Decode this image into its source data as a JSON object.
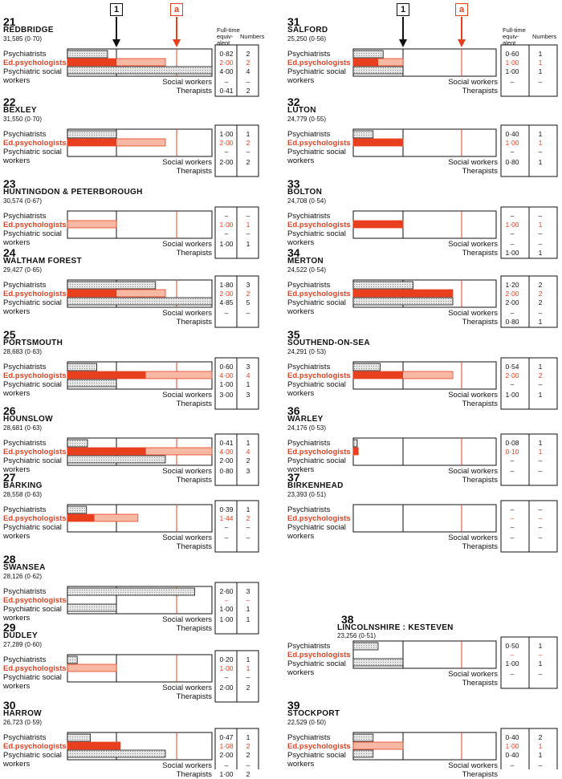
{
  "legend": {
    "marker_black": "1",
    "marker_red": "a",
    "col_header_fte": "Full-time equiv-alent",
    "col_header_fte_lines": [
      "Full-time",
      "equiv-",
      "alent"
    ],
    "col_header_num": "Numbers"
  },
  "row_labels": {
    "psychiatrists": "Psychiatrists",
    "ed_psychologists": "Ed.psychologists",
    "psychiatric_social": "Psychiatric social",
    "workers": "workers",
    "social_workers": "Social workers",
    "therapists": "Therapists"
  },
  "colors": {
    "black": "#111111",
    "red": "#e8401f",
    "red_light": "#f7b9a3",
    "hatch": "#c9c9c9"
  },
  "chart_data": {
    "type": "bar",
    "categories": [
      "Psychiatrists",
      "Ed.psychologists",
      "Psychiatric social workers",
      "Social workers",
      "Therapists"
    ],
    "markers": {
      "1": 1.0,
      "a": 2.25
    },
    "xlim": [
      0,
      5
    ],
    "areas": [
      {
        "rank": "21",
        "name": "REDBRIDGE",
        "pop": "31,585 (0·70)",
        "fte": [
          "0·82",
          "2·00",
          "4·00",
          "–",
          "0·41"
        ],
        "num": [
          "2",
          "2",
          "4",
          "–",
          "2"
        ],
        "ed_actual": 1.0
      },
      {
        "rank": "22",
        "name": "BEXLEY",
        "pop": "31,550 (0·70)",
        "fte": [
          "1·00",
          "2·00",
          "–",
          "2·00",
          ""
        ],
        "num": [
          "1",
          "2",
          "–",
          "2",
          ""
        ],
        "ed_actual": 1.0
      },
      {
        "rank": "23",
        "name": "HUNTINGDON & PETERBOROUGH",
        "pop": "30,574 (0·67)",
        "fte": [
          "–",
          "1·00",
          "–",
          "1·00",
          ""
        ],
        "num": [
          "–",
          "1",
          "–",
          "1",
          ""
        ],
        "ed_actual": 0
      },
      {
        "rank": "24",
        "name": "WALTHAM FOREST",
        "pop": "29,427 (0·65)",
        "fte": [
          "1·80",
          "2·00",
          "4·85",
          "–",
          ""
        ],
        "num": [
          "3",
          "2",
          "5",
          "–",
          ""
        ],
        "ed_actual": 1.0
      },
      {
        "rank": "25",
        "name": "PORTSMOUTH",
        "pop": "28,683 (0·63)",
        "fte": [
          "0·60",
          "4·00",
          "1·00",
          "3·00",
          ""
        ],
        "num": [
          "3",
          "4",
          "1",
          "3",
          ""
        ],
        "ed_actual": 1.6
      },
      {
        "rank": "26",
        "name": "HOUNSLOW",
        "pop": "28,681 (0·63)",
        "fte": [
          "0·41",
          "4·00",
          "2·00",
          "0·80",
          ""
        ],
        "num": [
          "1",
          "4",
          "2",
          "3",
          ""
        ],
        "ed_actual": 1.6
      },
      {
        "rank": "27",
        "name": "BARKING",
        "pop": "28,558 (0·63)",
        "fte": [
          "0·39",
          "1·44",
          "–",
          "–",
          ""
        ],
        "num": [
          "1",
          "2",
          "–",
          "–",
          ""
        ],
        "ed_actual": 0.55
      },
      {
        "rank": "28",
        "name": "SWANSEA",
        "pop": "28,126 (0·62)",
        "fte": [
          "2·60",
          "–",
          "1·00",
          "1·00",
          ""
        ],
        "num": [
          "3",
          "–",
          "1",
          "1",
          ""
        ],
        "ed_actual": 0
      },
      {
        "rank": "29",
        "name": "DUDLEY",
        "pop": "27,289 (0·60)",
        "fte": [
          "0·20",
          "1·00",
          "–",
          "2·00",
          ""
        ],
        "num": [
          "1",
          "1",
          "–",
          "2",
          ""
        ],
        "ed_actual": 0
      },
      {
        "rank": "30",
        "name": "HARROW",
        "pop": "26,723 (0·59)",
        "fte": [
          "0·47",
          "1·08",
          "2·00",
          "–",
          "1·00"
        ],
        "num": [
          "1",
          "2",
          "2",
          "–",
          "2"
        ],
        "ed_actual": 1.08
      },
      {
        "rank": "31",
        "name": "SALFORD",
        "pop": "25,250 (0·56)",
        "fte": [
          "0·60",
          "1·00",
          "1·00",
          "–",
          ""
        ],
        "num": [
          "1",
          "1",
          "1",
          "–",
          ""
        ],
        "ed_actual": 0.5
      },
      {
        "rank": "32",
        "name": "LUTON",
        "pop": "24,779 (0·55)",
        "fte": [
          "0·40",
          "1·00",
          "–",
          "0·80",
          ""
        ],
        "num": [
          "1",
          "1",
          "–",
          "1",
          ""
        ],
        "ed_actual": 1.0
      },
      {
        "rank": "33",
        "name": "BOLTON",
        "pop": "24,708 (0·54)",
        "fte": [
          "–",
          "1·00",
          "–",
          "–",
          "1·00"
        ],
        "num": [
          "–",
          "1",
          "–",
          "–",
          "1"
        ],
        "ed_actual": 1.0
      },
      {
        "rank": "34",
        "name": "MERTON",
        "pop": "24,522 (0·54)",
        "fte": [
          "1·20",
          "2·00",
          "2·00",
          "–",
          "0·80"
        ],
        "num": [
          "2",
          "2",
          "2",
          "–",
          "1"
        ],
        "ed_actual": 2.0
      },
      {
        "rank": "35",
        "name": "SOUTHEND-ON-SEA",
        "pop": "24,291 (0·53)",
        "fte": [
          "0·54",
          "2·00",
          "–",
          "1·00",
          ""
        ],
        "num": [
          "1",
          "2",
          "–",
          "1",
          ""
        ],
        "ed_actual": 1.0
      },
      {
        "rank": "36",
        "name": "WARLEY",
        "pop": "24,176 (0·53)",
        "fte": [
          "0·08",
          "0·10",
          "–",
          "–",
          ""
        ],
        "num": [
          "1",
          "1",
          "–",
          "–",
          ""
        ],
        "ed_actual": 0.1
      },
      {
        "rank": "37",
        "name": "BIRKENHEAD",
        "pop": "23,393 (0·51)",
        "fte": [
          "–",
          "–",
          "–",
          "–",
          ""
        ],
        "num": [
          "–",
          "–",
          "–",
          "–",
          ""
        ],
        "ed_actual": 0
      },
      {
        "rank": "38",
        "name": "LINCOLNSHIRE : KESTEVEN",
        "pop": "23,256 (0·51)",
        "fte": [
          "0·50",
          "–",
          "1·00",
          "–",
          ""
        ],
        "num": [
          "1",
          "–",
          "1",
          "–",
          ""
        ],
        "ed_actual": 0
      },
      {
        "rank": "39",
        "name": "STOCKPORT",
        "pop": "22,529 (0·50)",
        "fte": [
          "0·40",
          "1·00",
          "0·40",
          "–",
          ""
        ],
        "num": [
          "2",
          "1",
          "1",
          "–",
          ""
        ],
        "ed_actual": 0
      }
    ]
  }
}
